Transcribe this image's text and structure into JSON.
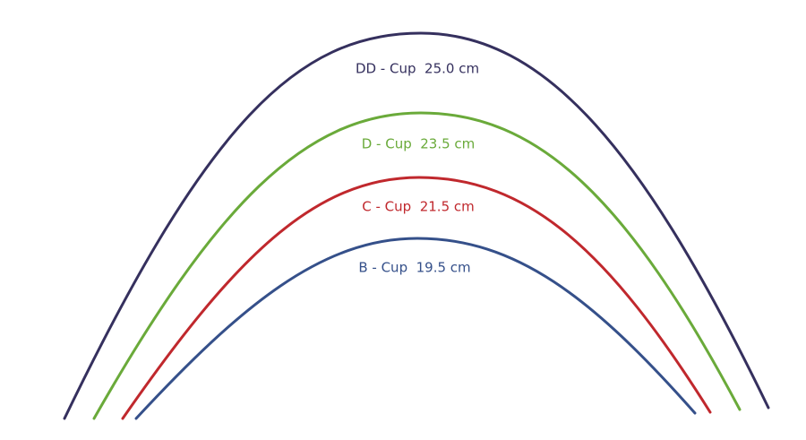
{
  "arcs": [
    {
      "label": "DD - Cup  25.0 cm"
    },
    {
      "label": "D - Cup  23.5 cm"
    },
    {
      "label": "C - Cup  21.5 cm"
    },
    {
      "label": "B - Cup  19.5 cm"
    }
  ]
}
